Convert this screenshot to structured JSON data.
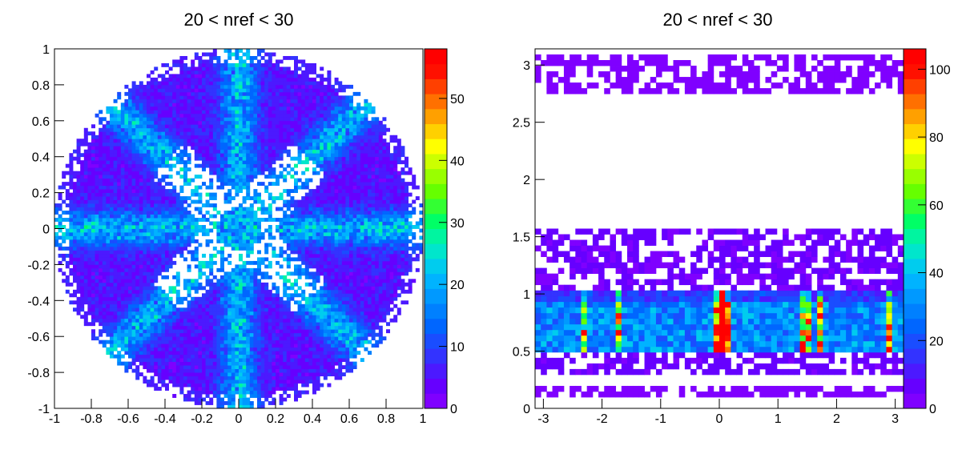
{
  "chart_data": [
    {
      "type": "heatmap",
      "title": "20 < nref < 30",
      "xlim": [
        -1,
        1
      ],
      "ylim": [
        -1,
        1
      ],
      "bins": [
        100,
        100
      ],
      "zlim": [
        0,
        58
      ],
      "xticks": [
        -1,
        -0.8,
        -0.6,
        -0.4,
        -0.2,
        0,
        0.2,
        0.4,
        0.6,
        0.8,
        1
      ],
      "yticks": [
        -1,
        -0.8,
        -0.6,
        -0.4,
        -0.2,
        0,
        0.2,
        0.4,
        0.6,
        0.8,
        1
      ],
      "xtick_labels": [
        "-1",
        "-0.8",
        "-0.6",
        "-0.4",
        "-0.2",
        "0",
        "0.2",
        "0.4",
        "0.6",
        "0.8",
        "1"
      ],
      "ytick_labels": [
        "-1",
        "-0.8",
        "-0.6",
        "-0.4",
        "-0.2",
        "0",
        "0.2",
        "0.4",
        "0.6",
        "0.8",
        "1"
      ],
      "zticks": [
        0,
        10,
        20,
        30,
        40,
        50
      ],
      "ztick_labels": [
        "0",
        "10",
        "20",
        "30",
        "40",
        "50"
      ],
      "description_of_density": "counts fill unit disk; bright radial spokes at 0, 45, 90, 135 degrees; empty central region near radius 0.2-0.4 along diagonals"
    },
    {
      "type": "heatmap",
      "title": "20 < nref < 30",
      "xlim": [
        -3.1416,
        3.1416
      ],
      "ylim": [
        0,
        3.1416
      ],
      "bins": [
        64,
        64
      ],
      "zlim": [
        0,
        106
      ],
      "xticks": [
        -3,
        -2,
        -1,
        0,
        1,
        2,
        3
      ],
      "yticks": [
        0,
        0.5,
        1,
        1.5,
        2,
        2.5,
        3
      ],
      "xtick_labels": [
        "-3",
        "-2",
        "-1",
        "0",
        "1",
        "2",
        "3"
      ],
      "ytick_labels": [
        "0",
        "0.5",
        "1",
        "1.5",
        "2",
        "2.5",
        "3"
      ],
      "zticks": [
        0,
        20,
        40,
        60,
        80,
        100
      ],
      "ztick_labels": [
        "0",
        "20",
        "40",
        "60",
        "80",
        "100"
      ],
      "bands": [
        {
          "y_from": 0.1,
          "y_to": 0.2,
          "level": 3
        },
        {
          "y_from": 0.3,
          "y_to": 0.5,
          "level": 6
        },
        {
          "y_from": 0.5,
          "y_to": 1.05,
          "level": 30
        },
        {
          "y_from": 1.05,
          "y_to": 1.55,
          "level": 5
        },
        {
          "y_from": 2.75,
          "y_to": 3.1,
          "level": 3
        }
      ],
      "hot_x": [
        -2.3,
        -1.7,
        0,
        0.1,
        1.5,
        1.7,
        2.9
      ]
    }
  ]
}
